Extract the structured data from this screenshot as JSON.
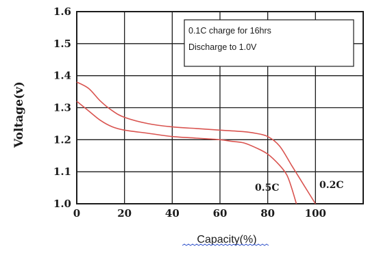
{
  "chart_data": {
    "type": "line",
    "xlabel": "Capacity(%)",
    "ylabel": "Voltage(v)",
    "xlim": [
      0,
      120
    ],
    "ylim": [
      1.0,
      1.6
    ],
    "x_ticks": [
      0,
      20,
      40,
      60,
      80,
      100
    ],
    "x_tick_labels": [
      "0",
      "20",
      "40",
      "60",
      "80",
      "100"
    ],
    "y_ticks": [
      1.0,
      1.1,
      1.2,
      1.3,
      1.4,
      1.5,
      1.6
    ],
    "y_tick_labels": [
      "1.0",
      "1.1",
      "1.2",
      "1.3",
      "1.4",
      "1.5",
      "1.6"
    ],
    "grid": true,
    "annotation": {
      "lines": [
        "0.1C charge for 16hrs",
        "Discharge to 1.0V"
      ],
      "placement": "top-right"
    },
    "series": [
      {
        "name": "0.2C",
        "color": "#d9534f",
        "x": [
          0,
          5,
          10,
          15,
          20,
          30,
          40,
          50,
          60,
          70,
          75,
          80,
          85,
          90,
          95,
          100
        ],
        "y": [
          1.38,
          1.36,
          1.32,
          1.29,
          1.27,
          1.25,
          1.24,
          1.235,
          1.23,
          1.225,
          1.22,
          1.21,
          1.18,
          1.12,
          1.06,
          1.0
        ]
      },
      {
        "name": "0.5C",
        "color": "#d9534f",
        "x": [
          0,
          5,
          10,
          15,
          20,
          30,
          40,
          50,
          60,
          65,
          70,
          75,
          80,
          85,
          88,
          90,
          92
        ],
        "y": [
          1.32,
          1.29,
          1.26,
          1.24,
          1.23,
          1.22,
          1.21,
          1.205,
          1.2,
          1.195,
          1.19,
          1.175,
          1.155,
          1.12,
          1.09,
          1.05,
          1.0
        ]
      }
    ]
  }
}
